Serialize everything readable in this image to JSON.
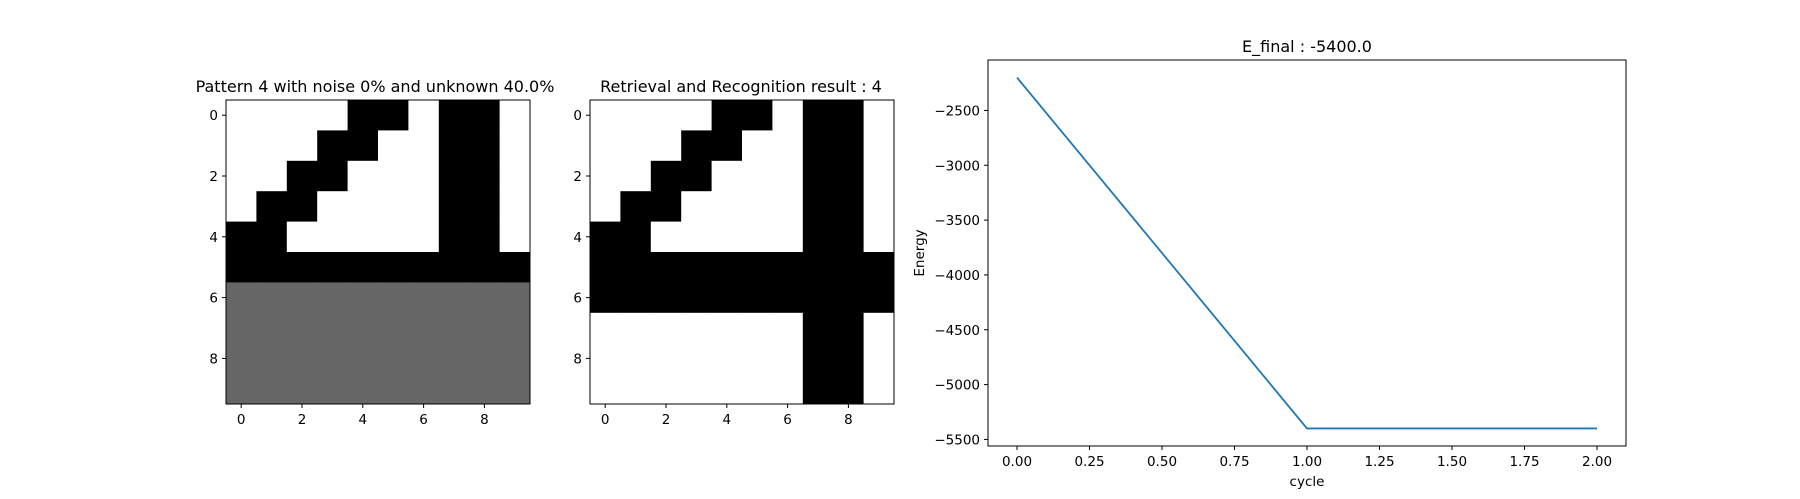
{
  "chart_data": [
    {
      "type": "heatmap",
      "title": "Pattern 4 with noise 0% and unknown 40.0%",
      "xticks": [
        "0",
        "2",
        "4",
        "6",
        "8"
      ],
      "yticks": [
        "0",
        "2",
        "4",
        "6",
        "8"
      ],
      "colormap": {
        "0": "#ffffff",
        "1": "#000000",
        "2": "#666666"
      },
      "grid": [
        [
          0,
          0,
          0,
          0,
          1,
          1,
          0,
          1,
          1,
          0
        ],
        [
          0,
          0,
          0,
          1,
          1,
          0,
          0,
          1,
          1,
          0
        ],
        [
          0,
          0,
          1,
          1,
          0,
          0,
          0,
          1,
          1,
          0
        ],
        [
          0,
          1,
          1,
          0,
          0,
          0,
          0,
          1,
          1,
          0
        ],
        [
          1,
          1,
          0,
          0,
          0,
          0,
          0,
          1,
          1,
          0
        ],
        [
          1,
          1,
          1,
          1,
          1,
          1,
          1,
          1,
          1,
          1
        ],
        [
          2,
          2,
          2,
          2,
          2,
          2,
          2,
          2,
          2,
          2
        ],
        [
          2,
          2,
          2,
          2,
          2,
          2,
          2,
          2,
          2,
          2
        ],
        [
          2,
          2,
          2,
          2,
          2,
          2,
          2,
          2,
          2,
          2
        ],
        [
          2,
          2,
          2,
          2,
          2,
          2,
          2,
          2,
          2,
          2
        ]
      ]
    },
    {
      "type": "heatmap",
      "title": "Retrieval and Recognition result : 4",
      "xticks": [
        "0",
        "2",
        "4",
        "6",
        "8"
      ],
      "yticks": [
        "0",
        "2",
        "4",
        "6",
        "8"
      ],
      "colormap": {
        "0": "#ffffff",
        "1": "#000000"
      },
      "grid": [
        [
          0,
          0,
          0,
          0,
          1,
          1,
          0,
          1,
          1,
          0
        ],
        [
          0,
          0,
          0,
          1,
          1,
          0,
          0,
          1,
          1,
          0
        ],
        [
          0,
          0,
          1,
          1,
          0,
          0,
          0,
          1,
          1,
          0
        ],
        [
          0,
          1,
          1,
          0,
          0,
          0,
          0,
          1,
          1,
          0
        ],
        [
          1,
          1,
          0,
          0,
          0,
          0,
          0,
          1,
          1,
          0
        ],
        [
          1,
          1,
          1,
          1,
          1,
          1,
          1,
          1,
          1,
          1
        ],
        [
          1,
          1,
          1,
          1,
          1,
          1,
          1,
          1,
          1,
          1
        ],
        [
          0,
          0,
          0,
          0,
          0,
          0,
          0,
          1,
          1,
          0
        ],
        [
          0,
          0,
          0,
          0,
          0,
          0,
          0,
          1,
          1,
          0
        ],
        [
          0,
          0,
          0,
          0,
          0,
          0,
          0,
          1,
          1,
          0
        ]
      ]
    },
    {
      "type": "line",
      "title": "E_final : -5400.0",
      "xlabel": "cycle",
      "ylabel": "Energy",
      "x": [
        0,
        1,
        2
      ],
      "series": [
        {
          "values": [
            -2200,
            -5400,
            -5400
          ],
          "color": "#1f77b4"
        }
      ],
      "xlim": [
        -0.1,
        2.1
      ],
      "ylim": [
        -5560,
        -2040
      ],
      "xticks": [
        "0.00",
        "0.25",
        "0.50",
        "0.75",
        "1.00",
        "1.25",
        "1.50",
        "1.75",
        "2.00"
      ],
      "yticks": [
        "-2500",
        "-3000",
        "-3500",
        "-4000",
        "-4500",
        "-5000",
        "-5500"
      ],
      "ytick_labels": [
        "−2500",
        "−3000",
        "−3500",
        "−4000",
        "−4500",
        "−5000",
        "−5500"
      ],
      "grid": false
    }
  ]
}
